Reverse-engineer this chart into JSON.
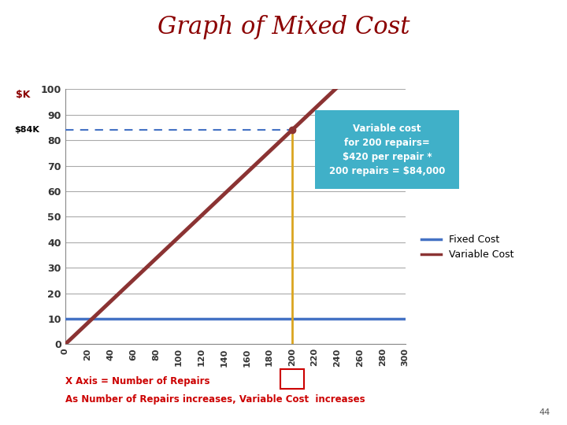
{
  "title": "Graph of Mixed Cost",
  "title_color": "#8B0000",
  "title_fontsize": 22,
  "xlabel_text": "X Axis = Number of Repairs",
  "xlabel2_text": "As Number of Repairs increases, Variable Cost  increases",
  "xlabel_color": "#cc0000",
  "x_ticks": [
    0,
    20,
    40,
    60,
    80,
    100,
    120,
    140,
    160,
    180,
    200,
    220,
    240,
    260,
    280,
    300
  ],
  "y_ticks": [
    0,
    10,
    20,
    30,
    40,
    50,
    60,
    70,
    80,
    90,
    100
  ],
  "xlim": [
    0,
    300
  ],
  "ylim": [
    0,
    100
  ],
  "fixed_cost_y": 10,
  "fixed_cost_color": "#4472C4",
  "variable_cost_slope": 0.42,
  "variable_cost_intercept": 0,
  "variable_cost_color": "#8B3333",
  "dot_x": 200,
  "dot_y": 84,
  "dashed_line_y": 84,
  "dashed_line_color": "#4472C4",
  "vertical_line_color": "#DAA520",
  "highlight_box_color": "#40B0C8",
  "highlight_text": "Variable cost\nfor 200 repairs=\n$420 per repair *\n200 repairs = $84,000",
  "highlight_text_color": "#FFFFFF",
  "legend_fixed": "Fixed Cost",
  "legend_variable": "Variable Cost",
  "page_number": "44",
  "background_color": "#FFFFFF",
  "box_label_color": "#cc0000",
  "ylabel_color": "#8B0000",
  "tick_label_color": "#333333"
}
